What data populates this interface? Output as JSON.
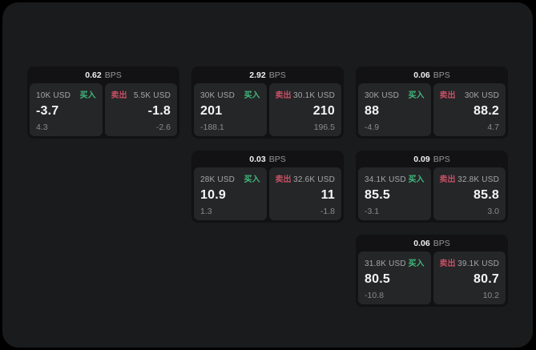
{
  "theme": {
    "page_bg": "#000000",
    "container_bg": "#1a1b1c",
    "card_bg": "#121214",
    "panel_bg": "#252628",
    "value_color": "#f4f4f4",
    "label_color": "#a6a6a8",
    "sub_color": "#8b8b8d",
    "buy_color": "#41b97c",
    "sell_color": "#c65064"
  },
  "labels": {
    "bps": "BPS",
    "buy": "买入",
    "sell": "卖出"
  },
  "cards": [
    {
      "bps": "0.62",
      "buy": {
        "size": "10K USD",
        "value": "-3.7",
        "sub": "4.3"
      },
      "sell": {
        "size": "5.5K USD",
        "value": "-1.8",
        "sub": "-2.6"
      }
    },
    {
      "bps": "2.92",
      "buy": {
        "size": "30K USD",
        "value": "201",
        "sub": "-188.1"
      },
      "sell": {
        "size": "30.1K USD",
        "value": "210",
        "sub": "196.5"
      }
    },
    {
      "bps": "0.06",
      "buy": {
        "size": "30K USD",
        "value": "88",
        "sub": "-4.9"
      },
      "sell": {
        "size": "30K USD",
        "value": "88.2",
        "sub": "4.7"
      }
    },
    {
      "bps": "0.03",
      "buy": {
        "size": "28K USD",
        "value": "10.9",
        "sub": "1.3"
      },
      "sell": {
        "size": "32.6K USD",
        "value": "11",
        "sub": "-1.8"
      }
    },
    {
      "bps": "0.09",
      "buy": {
        "size": "34.1K USD",
        "value": "85.5",
        "sub": "-3.1"
      },
      "sell": {
        "size": "32.8K USD",
        "value": "85.8",
        "sub": "3.0"
      }
    },
    {
      "bps": "0.06",
      "buy": {
        "size": "31.8K USD",
        "value": "80.5",
        "sub": "-10.8"
      },
      "sell": {
        "size": "39.1K USD",
        "value": "80.7",
        "sub": "10.2"
      }
    }
  ]
}
